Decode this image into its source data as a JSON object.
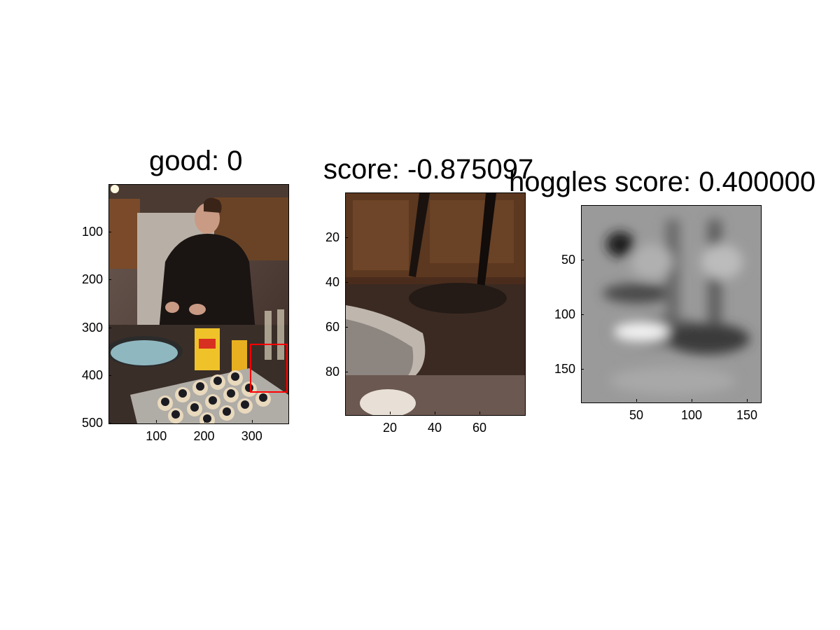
{
  "chart_data": [
    {
      "type": "image",
      "title": "good: 0",
      "xticks": [
        100,
        200,
        300
      ],
      "yticks": [
        100,
        200,
        300,
        400,
        500
      ],
      "xlim": [
        0,
        375
      ],
      "ylim": [
        0,
        500
      ],
      "colors": {
        "box": "#ff0000"
      }
    },
    {
      "type": "image",
      "title": "score: -0.875097",
      "xticks": [
        20,
        40,
        60
      ],
      "yticks": [
        20,
        40,
        60,
        80
      ],
      "xlim": [
        0,
        80
      ],
      "ylim": [
        0,
        99
      ]
    },
    {
      "type": "image",
      "title": "hoggles score: 0.400000",
      "xticks": [
        50,
        100,
        150
      ],
      "yticks": [
        50,
        100,
        150
      ],
      "xlim": [
        0,
        162
      ],
      "ylim": [
        0,
        180
      ]
    }
  ]
}
